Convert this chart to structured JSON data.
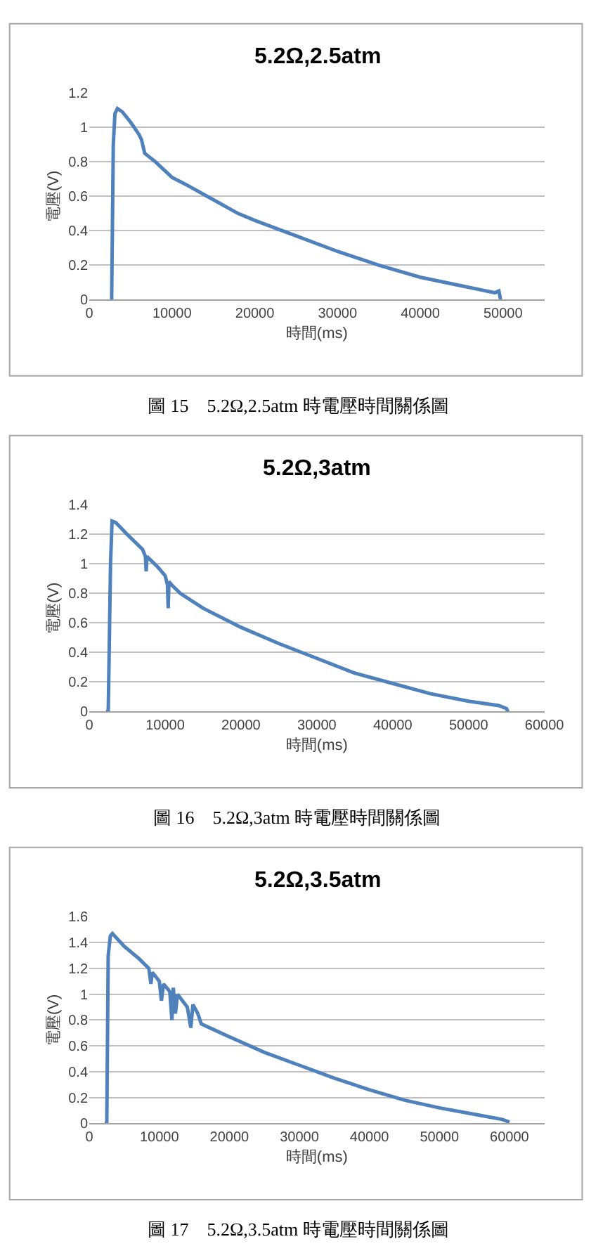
{
  "chart_data": [
    {
      "type": "line",
      "title": "5.2Ω,2.5atm",
      "xlabel": "時間(ms)",
      "ylabel": "電壓(V)",
      "annotations": [
        "圖 15　5.2Ω,2.5atm 時電壓時間關係圖"
      ],
      "xlim": [
        0,
        55000
      ],
      "xticks": [
        0,
        10000,
        20000,
        30000,
        40000,
        50000
      ],
      "ylim": [
        0,
        1.2
      ],
      "yticks": [
        0,
        0.2,
        0.4,
        0.6,
        0.8,
        1,
        1.2
      ],
      "grid": "y",
      "marker": "none",
      "line_style": "solid",
      "series": [
        {
          "color": "#4f81bd",
          "x": [
            2500,
            2700,
            2900,
            3100,
            3400,
            4000,
            5000,
            6000,
            6300,
            6700,
            8000,
            10000,
            12000,
            15000,
            18000,
            20000,
            25000,
            30000,
            35000,
            40000,
            45000,
            47000,
            49000,
            49500,
            49700
          ],
          "values": [
            0,
            0,
            0.9,
            1.08,
            1.11,
            1.09,
            1.03,
            0.96,
            0.93,
            0.85,
            0.8,
            0.71,
            0.66,
            0.58,
            0.5,
            0.46,
            0.37,
            0.28,
            0.2,
            0.13,
            0.08,
            0.06,
            0.04,
            0.05,
            0
          ]
        }
      ]
    },
    {
      "type": "line",
      "title": "5.2Ω,3atm",
      "xlabel": "時間(ms)",
      "ylabel": "電壓(V)",
      "annotations": [
        "圖 16　5.2Ω,3atm 時電壓時間關係圖"
      ],
      "xlim": [
        0,
        60000
      ],
      "xticks": [
        0,
        10000,
        20000,
        30000,
        40000,
        50000,
        60000
      ],
      "ylim": [
        0,
        1.4
      ],
      "yticks": [
        0,
        0.2,
        0.4,
        0.6,
        0.8,
        1,
        1.2,
        1.4
      ],
      "grid": "y",
      "marker": "none",
      "line_style": "solid",
      "series": [
        {
          "color": "#4f81bd",
          "x": [
            2200,
            2500,
            2800,
            3000,
            3500,
            5000,
            7000,
            7400,
            7500,
            7600,
            9000,
            10000,
            10300,
            10400,
            10500,
            11000,
            12000,
            15000,
            20000,
            25000,
            30000,
            35000,
            40000,
            45000,
            50000,
            54000,
            55000,
            55200
          ],
          "values": [
            0,
            0,
            1.0,
            1.29,
            1.28,
            1.2,
            1.1,
            1.05,
            0.95,
            1.05,
            0.98,
            0.92,
            0.86,
            0.7,
            0.88,
            0.85,
            0.8,
            0.7,
            0.57,
            0.46,
            0.36,
            0.26,
            0.19,
            0.12,
            0.07,
            0.04,
            0.02,
            0
          ]
        }
      ]
    },
    {
      "type": "line",
      "title": "5.2Ω,3.5atm",
      "xlabel": "時間(ms)",
      "ylabel": "電壓(V)",
      "annotations": [
        "圖 17　5.2Ω,3.5atm 時電壓時間關係圖"
      ],
      "xlim": [
        0,
        65000
      ],
      "xticks": [
        0,
        10000,
        20000,
        30000,
        40000,
        50000,
        60000
      ],
      "ylim": [
        0,
        1.6
      ],
      "yticks": [
        0,
        0.2,
        0.4,
        0.6,
        0.8,
        1,
        1.2,
        1.4,
        1.6
      ],
      "grid": "y",
      "marker": "none",
      "line_style": "solid",
      "series": [
        {
          "color": "#4f81bd",
          "x": [
            2200,
            2500,
            2700,
            3000,
            3300,
            5000,
            7000,
            8500,
            8800,
            9000,
            10000,
            10300,
            10600,
            11500,
            11800,
            12000,
            12300,
            12600,
            14000,
            14500,
            14800,
            15500,
            16000,
            18000,
            20000,
            25000,
            30000,
            35000,
            40000,
            45000,
            50000,
            55000,
            59000,
            60000
          ],
          "values": [
            0,
            0,
            1.3,
            1.45,
            1.47,
            1.37,
            1.28,
            1.2,
            1.08,
            1.17,
            1.1,
            0.95,
            1.08,
            1.02,
            0.8,
            1.05,
            0.85,
            1.0,
            0.9,
            0.74,
            0.92,
            0.85,
            0.77,
            0.72,
            0.67,
            0.55,
            0.45,
            0.35,
            0.26,
            0.18,
            0.12,
            0.07,
            0.03,
            0.01
          ]
        }
      ]
    }
  ]
}
